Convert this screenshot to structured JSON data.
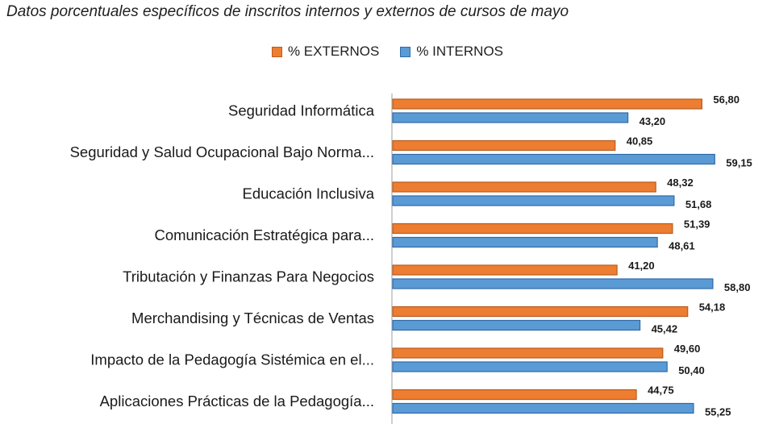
{
  "chart_data": {
    "type": "bar",
    "orientation": "horizontal",
    "title": "Datos porcentuales específicos de inscritos internos y externos de cursos de mayo",
    "legend_position": "top",
    "xlim": [
      0,
      70
    ],
    "grid": false,
    "categories": [
      "Seguridad Informática",
      "Seguridad y Salud Ocupacional Bajo Norma...",
      "Educación Inclusiva",
      "Comunicación Estratégica para...",
      "Tributación y Finanzas Para Negocios",
      "Merchandising y Técnicas de Ventas",
      "Impacto de la Pedagogía Sistémica en el...",
      "Aplicaciones Prácticas de la Pedagogía..."
    ],
    "series": [
      {
        "name": "% EXTERNOS",
        "color": "#ED7D31",
        "border": "#B85C1E",
        "values": [
          56.8,
          40.85,
          48.32,
          51.39,
          41.2,
          54.18,
          49.6,
          44.75
        ],
        "labels": [
          "56,80",
          "40,85",
          "48,32",
          "51,39",
          "41,20",
          "54,18",
          "49,60",
          "44,75"
        ]
      },
      {
        "name": "% INTERNOS",
        "color": "#5B9BD5",
        "border": "#2E6AA8",
        "values": [
          43.2,
          59.15,
          51.68,
          48.61,
          58.8,
          45.42,
          50.4,
          55.25
        ],
        "labels": [
          "43,20",
          "59,15",
          "51,68",
          "48,61",
          "58,80",
          "45,42",
          "50,40",
          "55,25"
        ]
      }
    ]
  }
}
